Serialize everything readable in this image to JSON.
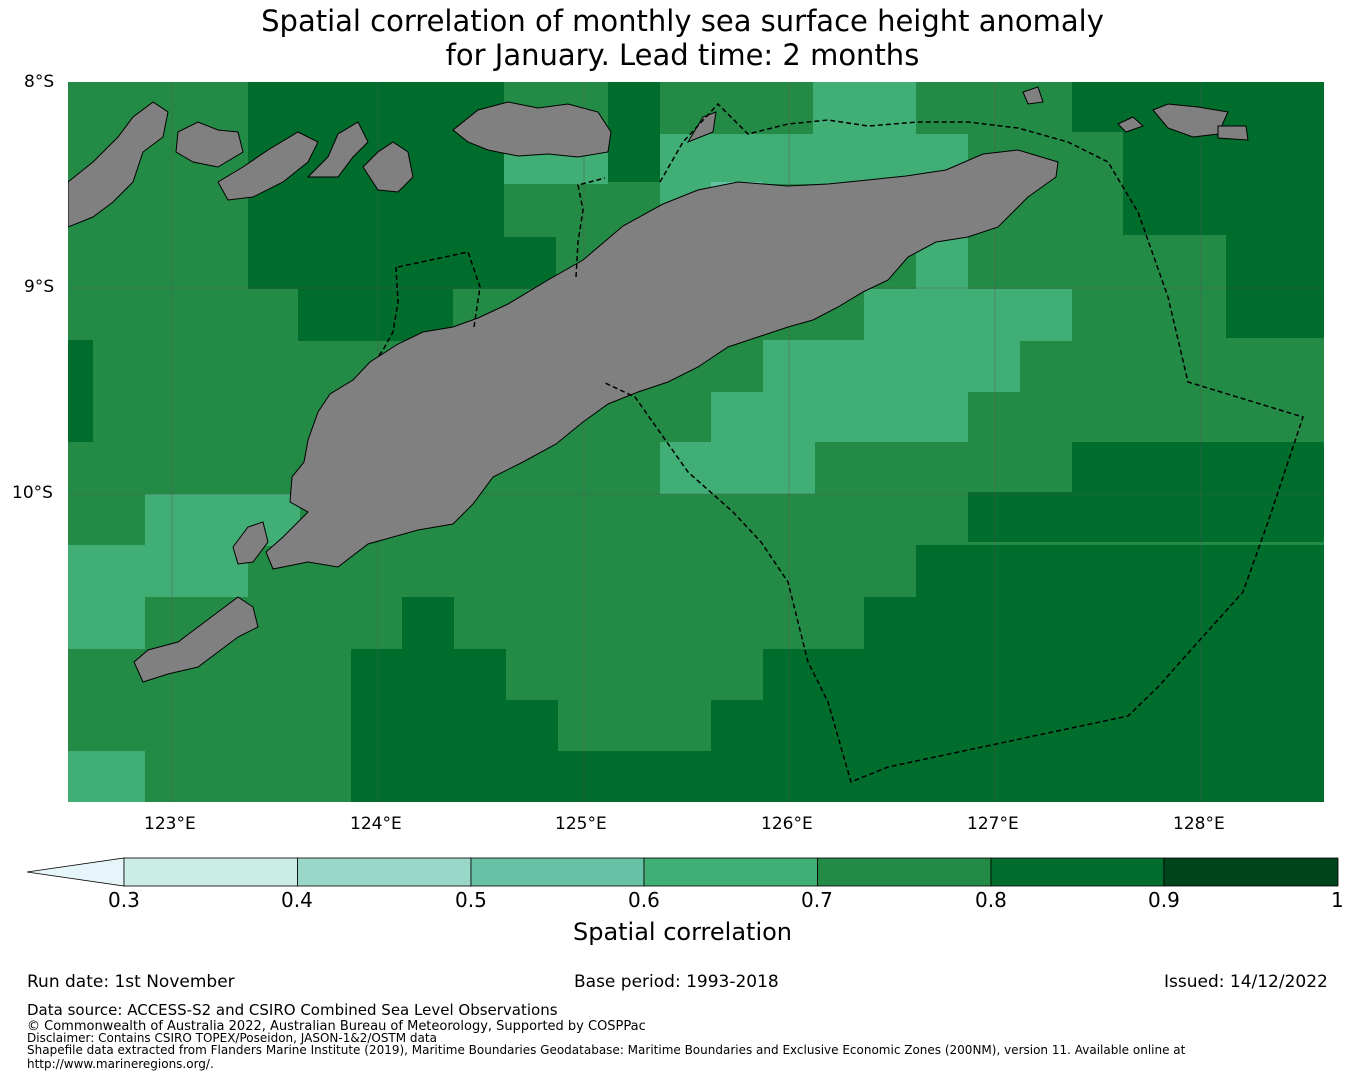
{
  "title_line1": "Spatial correlation of monthly sea surface height anomaly",
  "title_line2": "for January. Lead time: 2 months",
  "lat_labels": [
    "8°S",
    "9°S",
    "10°S"
  ],
  "lon_labels": [
    "123°E",
    "124°E",
    "125°E",
    "126°E",
    "127°E",
    "128°E"
  ],
  "colorbar": {
    "label": "Spatial correlation",
    "ticks": [
      "0.3",
      "0.4",
      "0.5",
      "0.6",
      "0.7",
      "0.8",
      "0.9",
      "1"
    ],
    "colors": [
      "#e5f5f9",
      "#ccece6",
      "#99d8c9",
      "#66c2a4",
      "#41ae76",
      "#238b45",
      "#006d2c",
      "#00441b"
    ]
  },
  "land_color": "#808080",
  "footer": {
    "run_date": "Run date: 1st November",
    "base_period": "Base period: 1993-2018",
    "issued": "Issued: 14/12/2022",
    "data_source": "Data source: ACCESS-S2 and CSIRO Combined Sea Level Observations",
    "copyright": "© Commonwealth of Australia 2022, Australian Bureau of Meteorology, Supported by COSPPac",
    "disclaimer": "Disclaimer: Contains CSIRO TOPEX/Poseidon, JASON-1&2/OSTM data",
    "shapefile": "Shapefile data extracted from Flanders Marine Institute (2019), Maritime Boundaries Geodatabase: Maritime Boundaries and Exclusive Economic Zones (200NM), version 11. Available online at",
    "url": "http://www.marineregions.org/."
  }
}
